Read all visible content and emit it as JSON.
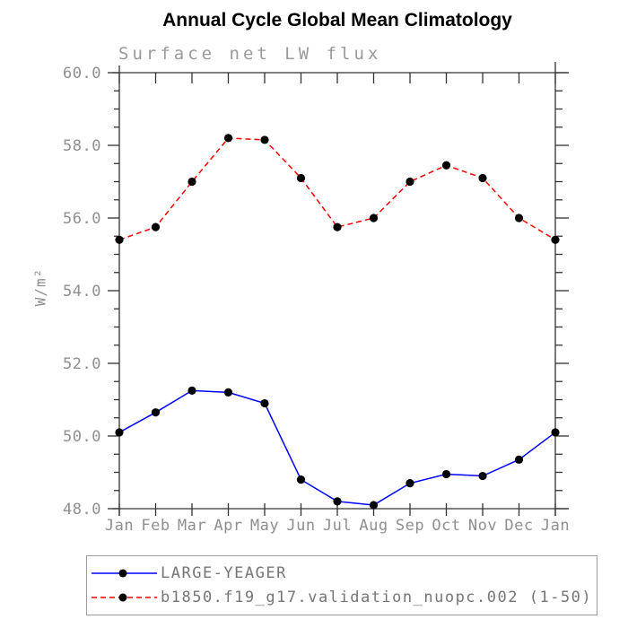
{
  "chart_data": {
    "type": "line",
    "title": "Annual Cycle Global Mean Climatology",
    "subtitle": "Surface net LW flux",
    "ylabel": "W/m²",
    "xlabel": "",
    "categories": [
      "Jan",
      "Feb",
      "Mar",
      "Apr",
      "May",
      "Jun",
      "Jul",
      "Aug",
      "Sep",
      "Oct",
      "Nov",
      "Dec",
      "Jan"
    ],
    "series": [
      {
        "name": "LARGE-YEAGER",
        "color": "#0000ff",
        "style": "solid",
        "marker": "circle",
        "marker_color": "#000000",
        "values": [
          50.1,
          50.65,
          51.25,
          51.2,
          50.9,
          48.8,
          48.2,
          48.1,
          48.7,
          48.95,
          48.9,
          49.35,
          50.1
        ]
      },
      {
        "name": "b1850.f19_g17.validation_nuopc.002 (1-50)",
        "color": "#ff0000",
        "style": "dashed",
        "marker": "circle",
        "marker_color": "#000000",
        "values": [
          55.4,
          55.75,
          57.0,
          58.2,
          58.15,
          57.1,
          55.75,
          56.0,
          57.0,
          57.45,
          57.1,
          56.0,
          55.4
        ]
      }
    ],
    "ylim": [
      48,
      60
    ],
    "y_major_step": 2,
    "y_minor_step": 0.5,
    "y_tick_labels": [
      "48.0",
      "50.0",
      "52.0",
      "54.0",
      "56.0",
      "58.0",
      "60.0"
    ],
    "grid": false,
    "legend_position": "bottom",
    "axis_color": "#333333",
    "tick_label_color": "#8f8f8f"
  }
}
